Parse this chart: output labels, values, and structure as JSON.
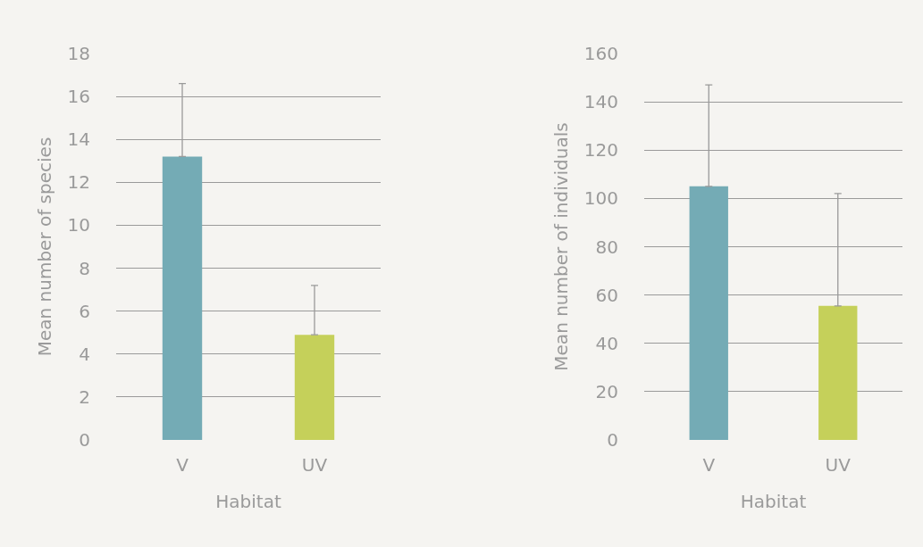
{
  "chart_data": [
    {
      "type": "bar",
      "xlabel": "Habitat",
      "ylabel": "Mean number of species",
      "categories": [
        "V",
        "UV"
      ],
      "values": [
        13.2,
        4.9
      ],
      "colors": [
        "#74abb5",
        "#c5d05a"
      ],
      "errors": [
        [
          13.2,
          16.6
        ],
        [
          4.9,
          7.2
        ]
      ],
      "ylim": [
        0,
        18
      ],
      "yticks": [
        0,
        2,
        4,
        6,
        8,
        10,
        12,
        14,
        16,
        18
      ],
      "grid": "y"
    },
    {
      "type": "bar",
      "xlabel": "Habitat",
      "ylabel": "Mean number of individuals",
      "categories": [
        "V",
        "UV"
      ],
      "values": [
        105,
        55.5
      ],
      "colors": [
        "#74abb5",
        "#c5d05a"
      ],
      "errors": [
        [
          105,
          147
        ],
        [
          55.5,
          102
        ]
      ],
      "ylim": [
        0,
        160
      ],
      "yticks": [
        0,
        20,
        40,
        60,
        80,
        100,
        120,
        140,
        160
      ],
      "grid": "y"
    }
  ]
}
